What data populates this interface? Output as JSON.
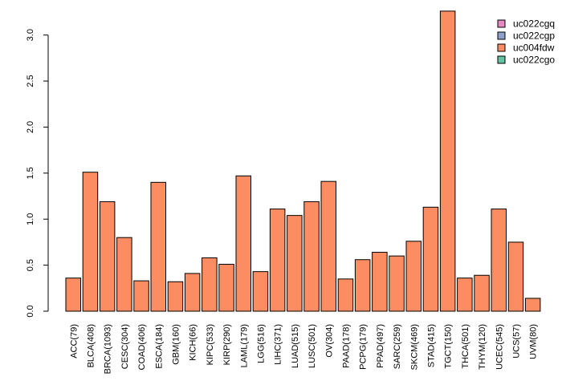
{
  "chart_data": {
    "type": "bar",
    "title": "",
    "xlabel": "",
    "ylabel": "",
    "ylim": [
      0,
      3.25
    ],
    "yticks": [
      "0.0",
      "0.5",
      "1.0",
      "1.5",
      "2.0",
      "2.5",
      "3.0"
    ],
    "ytick_values": [
      0,
      0.5,
      1.0,
      1.5,
      2.0,
      2.5,
      3.0
    ],
    "grid": false,
    "legend_position": "top-right",
    "categories": [
      "ACC(79)",
      "BLCA(408)",
      "BRCA(1093)",
      "CESC(304)",
      "COAD(406)",
      "ESCA(184)",
      "GBM(160)",
      "KICH(66)",
      "KIPC(533)",
      "KIRP(290)",
      "LAML(179)",
      "LGG(516)",
      "LIHC(371)",
      "LUAD(515)",
      "LUSC(501)",
      "OV(304)",
      "PAAD(178)",
      "PCPG(179)",
      "PPAD(497)",
      "SARC(259)",
      "SKCM(469)",
      "STAD(415)",
      "TGCT(150)",
      "THCA(501)",
      "THYM(120)",
      "UCEC(545)",
      "UCS(57)",
      "UVM(80)"
    ],
    "series": [
      {
        "name": "uc004fdw",
        "color": "#fc8d62",
        "values": [
          0.36,
          1.51,
          1.19,
          0.8,
          0.33,
          1.4,
          0.32,
          0.41,
          0.58,
          0.51,
          1.47,
          0.43,
          1.11,
          1.04,
          1.19,
          1.41,
          0.35,
          0.56,
          0.64,
          0.6,
          0.76,
          1.13,
          3.26,
          0.36,
          0.39,
          1.11,
          0.75,
          0.14
        ]
      }
    ],
    "legend": [
      {
        "label": "uc022cgq",
        "color": "#e78ac3"
      },
      {
        "label": "uc022cgp",
        "color": "#8da0cb"
      },
      {
        "label": "uc004fdw",
        "color": "#fc8d62"
      },
      {
        "label": "uc022cgo",
        "color": "#66c2a5"
      }
    ]
  }
}
